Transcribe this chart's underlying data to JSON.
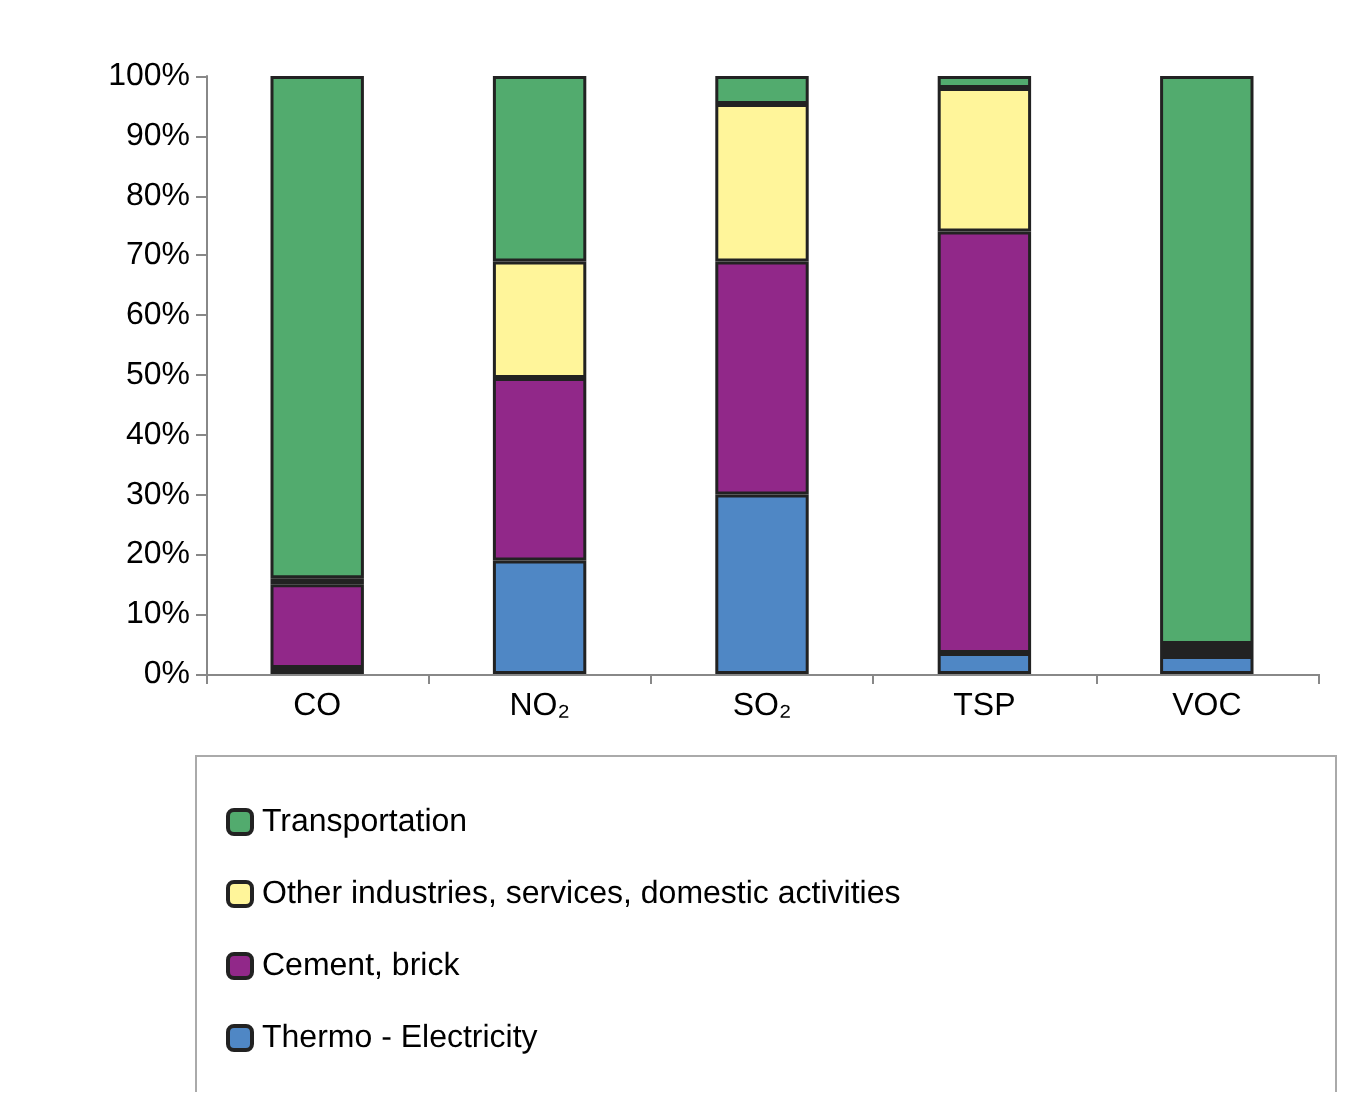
{
  "chart_data": {
    "type": "bar",
    "stacked": true,
    "categories": [
      "CO",
      "NO₂",
      "SO₂",
      "TSP",
      "VOC"
    ],
    "series": [
      {
        "name": "Thermo - Electricity",
        "color": "#4f87c5",
        "values": [
          1,
          19,
          30,
          3.5,
          3
        ]
      },
      {
        "name": "Cement, brick",
        "color": "#912889",
        "values": [
          14,
          30.5,
          39,
          70.5,
          1
        ]
      },
      {
        "name": "Other industries, services, domestic activities",
        "color": "#fff59a",
        "values": [
          1,
          19.5,
          26.3,
          24,
          1
        ]
      },
      {
        "name": "Transportation",
        "color": "#52ab6e",
        "values": [
          84,
          31,
          4.7,
          2,
          95
        ]
      }
    ],
    "ylim": [
      0,
      100
    ],
    "yticks": [
      {
        "value": 0,
        "label": "0%"
      },
      {
        "value": 10,
        "label": "10%"
      },
      {
        "value": 20,
        "label": "20%"
      },
      {
        "value": 30,
        "label": "30%"
      },
      {
        "value": 40,
        "label": "40%"
      },
      {
        "value": 50,
        "label": "50%"
      },
      {
        "value": 60,
        "label": "60%"
      },
      {
        "value": 70,
        "label": "70%"
      },
      {
        "value": 80,
        "label": "80%"
      },
      {
        "value": 90,
        "label": "90%"
      },
      {
        "value": 100,
        "label": "100%"
      }
    ],
    "grid": false,
    "legend": "bottom"
  }
}
